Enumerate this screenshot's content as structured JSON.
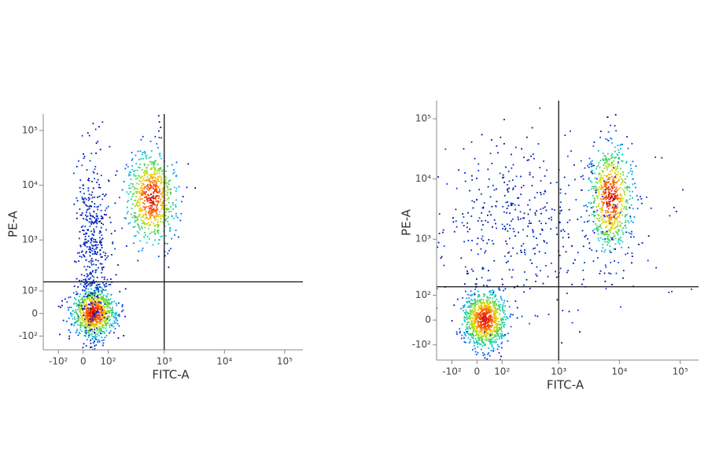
{
  "chart_data": [
    {
      "type": "density",
      "x_label": "FITC-A",
      "y_label": "PE-A",
      "scale": "biexponential",
      "xlim": [
        -200,
        200000
      ],
      "ylim": [
        -200,
        200000
      ],
      "xticks": [
        {
          "value": -100,
          "label": "-10²"
        },
        0,
        {
          "value": 100,
          "label": "10²"
        },
        {
          "value": 1000,
          "label": "10³"
        },
        {
          "value": 10000,
          "label": "10⁴"
        },
        {
          "value": 100000,
          "label": "10⁵"
        }
      ],
      "yticks": [
        {
          "value": -100,
          "label": "-10²"
        },
        0,
        {
          "value": 100,
          "label": "10²"
        },
        {
          "value": 1000,
          "label": "10³"
        },
        {
          "value": 10000,
          "label": "10⁴"
        },
        {
          "value": 100000,
          "label": "10⁵"
        }
      ],
      "gate": {
        "x": 1000,
        "y": 160
      },
      "populations": [
        {
          "x": 35,
          "y": 5
        },
        {
          "x": 600,
          "y": 6000
        },
        {
          "x": 30,
          "y": 600
        }
      ]
    },
    {
      "type": "density",
      "x_label": "FITC-A",
      "y_label": "PE-A",
      "scale": "biexponential",
      "xlim": [
        -200,
        200000
      ],
      "ylim": [
        -200,
        200000
      ],
      "xticks": [
        {
          "value": -100,
          "label": "-10²"
        },
        0,
        {
          "value": 100,
          "label": "10²"
        },
        {
          "value": 1000,
          "label": "10³"
        },
        {
          "value": 10000,
          "label": "10⁴"
        },
        {
          "value": 100000,
          "label": "10⁵"
        }
      ],
      "yticks": [
        {
          "value": -100,
          "label": "-10²"
        },
        0,
        {
          "value": 100,
          "label": "10²"
        },
        {
          "value": 1000,
          "label": "10³"
        },
        {
          "value": 10000,
          "label": "10⁴"
        },
        {
          "value": 100000,
          "label": "10⁵"
        }
      ],
      "gate": {
        "x": 1000,
        "y": 150
      },
      "populations": [
        {
          "x": 25,
          "y": 5
        },
        {
          "x": 7000,
          "y": 5000
        },
        {
          "x": 300,
          "y": 2000
        }
      ]
    }
  ]
}
